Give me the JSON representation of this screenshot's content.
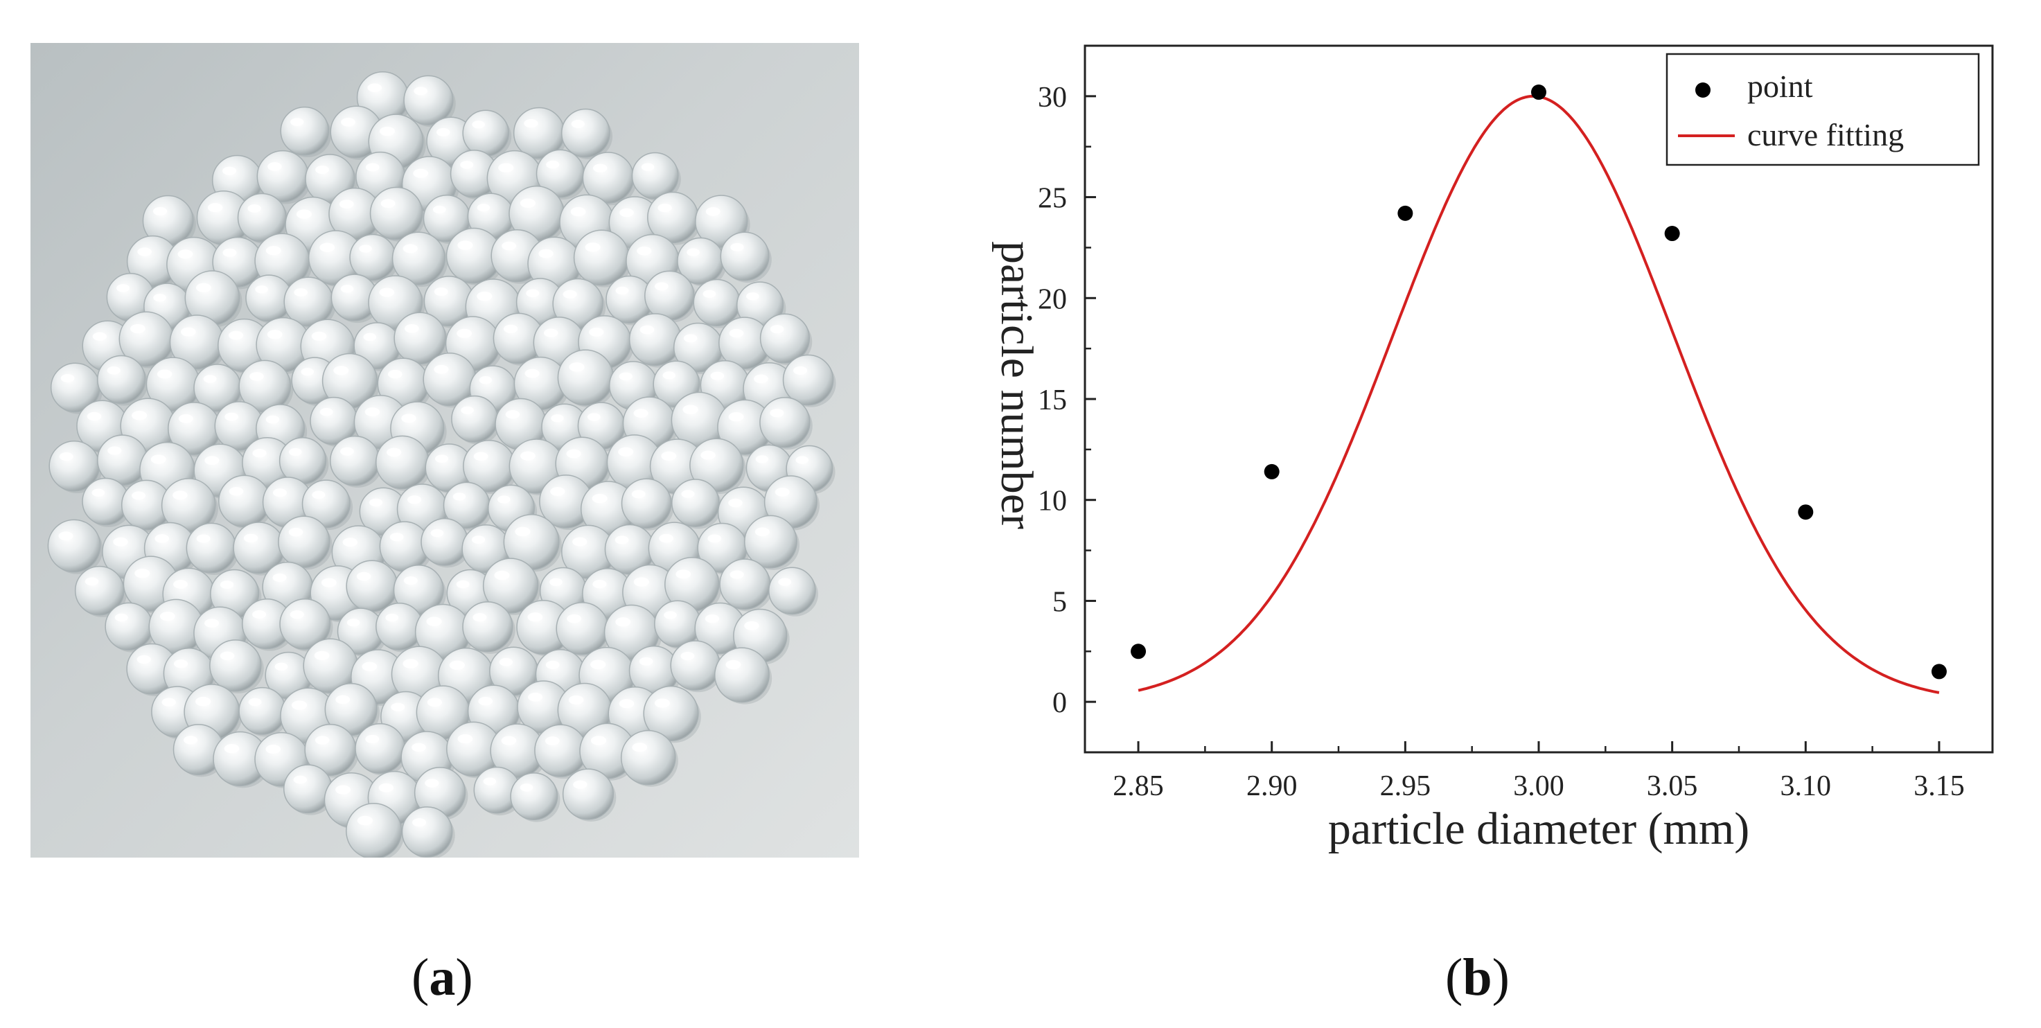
{
  "figure": {
    "panel_a": {
      "label": "a",
      "content": "photograph"
    },
    "panel_b": {
      "label": "b"
    }
  },
  "chart_data": {
    "type": "scatter",
    "xlabel": "particle diameter (mm)",
    "ylabel": "particle number",
    "xlim": [
      2.83,
      3.17
    ],
    "ylim": [
      -2.5,
      32.5
    ],
    "xticks": [
      "2.85",
      "2.90",
      "2.95",
      "3.00",
      "3.05",
      "3.10",
      "3.15"
    ],
    "yticks": [
      "0",
      "5",
      "10",
      "15",
      "20",
      "25",
      "30"
    ],
    "grid": false,
    "legend_position": "top-right",
    "series": [
      {
        "name": "point",
        "type": "scatter",
        "color": "#000000",
        "points": [
          {
            "x": 2.85,
            "y": 2.5
          },
          {
            "x": 2.9,
            "y": 11.4
          },
          {
            "x": 2.95,
            "y": 24.2
          },
          {
            "x": 3.0,
            "y": 30.2
          },
          {
            "x": 3.05,
            "y": 23.2
          },
          {
            "x": 3.1,
            "y": 9.4
          },
          {
            "x": 3.15,
            "y": 1.5
          }
        ]
      },
      {
        "name": "curve fitting",
        "type": "line",
        "color": "#d42020",
        "model": "gaussian",
        "x_range": [
          2.85,
          3.15
        ],
        "params": {
          "amplitude": 30.0,
          "center": 2.998,
          "sigma": 0.0525
        }
      }
    ]
  }
}
